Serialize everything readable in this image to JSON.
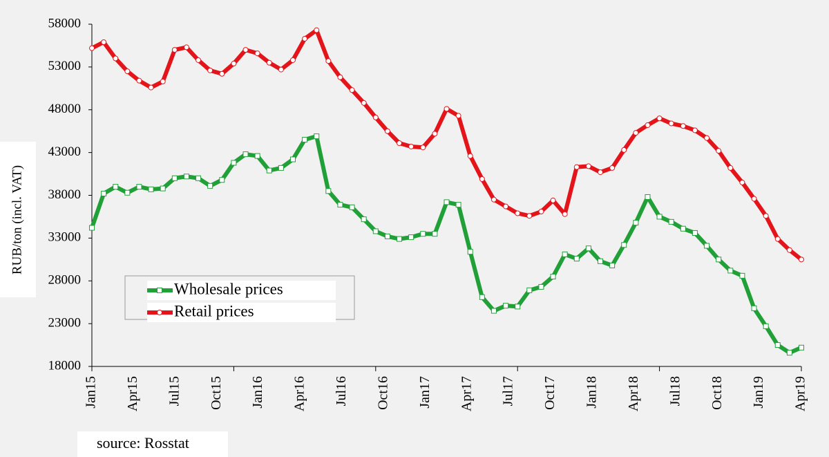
{
  "chart_data": {
    "type": "line",
    "y_label": "RUB/ton (incl. VAT)",
    "x_labels": [
      "Jan15",
      "Apr15",
      "Jul15",
      "Oct15",
      "Jan16",
      "Apr16",
      "Jul16",
      "Oct16",
      "Jan17",
      "Apr17",
      "Jul17",
      "Oct17",
      "Jan18",
      "Apr18",
      "Jul18",
      "Oct18",
      "Jan19",
      "Apr19"
    ],
    "series": [
      {
        "name": "Wholesale prices",
        "color": "#21a038",
        "marker": "square",
        "values": [
          34200,
          38200,
          39000,
          38300,
          39000,
          38700,
          38800,
          40000,
          40200,
          40000,
          39100,
          39800,
          41800,
          42800,
          42600,
          40900,
          41200,
          42200,
          44500,
          44900,
          38500,
          36900,
          36600,
          35200,
          33800,
          33200,
          32900,
          33100,
          33500,
          33500,
          37200,
          36900,
          31400,
          26100,
          24500,
          25100,
          25000,
          26900,
          27300,
          28500,
          31100,
          30600,
          31800,
          30300,
          29800,
          32200,
          34800,
          37800,
          35500,
          34900,
          34100,
          33600,
          32100,
          30500,
          29200,
          28600,
          24800,
          22700,
          20500,
          19600,
          20200
        ]
      },
      {
        "name": "Retail prices",
        "color": "#e3151b",
        "marker": "circle",
        "values": [
          55200,
          55900,
          54000,
          52500,
          51400,
          50600,
          51300,
          55000,
          55300,
          53800,
          52600,
          52200,
          53400,
          55000,
          54600,
          53500,
          52700,
          53800,
          56300,
          57300,
          53700,
          51800,
          50300,
          48800,
          47100,
          45500,
          44100,
          43700,
          43600,
          45200,
          48100,
          47300,
          42600,
          39900,
          37500,
          36700,
          35900,
          35600,
          36100,
          37400,
          35800,
          41300,
          41400,
          40700,
          41200,
          43300,
          45300,
          46200,
          47000,
          46400,
          46100,
          45600,
          44700,
          43200,
          41200,
          39500,
          37600,
          35600,
          32900,
          31600,
          30500
        ]
      }
    ],
    "ylim": [
      18000,
      58000
    ],
    "yticks": [
      18000,
      23000,
      28000,
      33000,
      38000,
      43000,
      48000,
      53000,
      58000
    ],
    "source": "source: Rosstat"
  }
}
